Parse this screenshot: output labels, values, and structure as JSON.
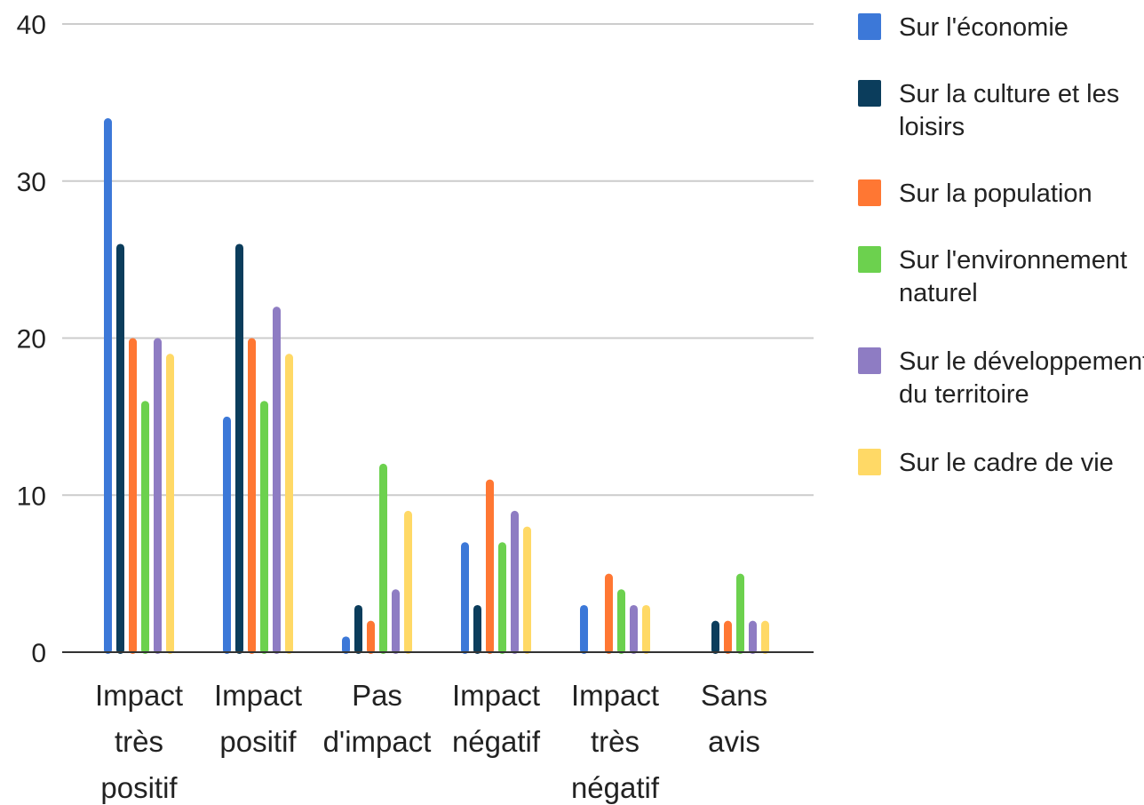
{
  "chart_data": {
    "type": "bar",
    "title": "",
    "xlabel": "",
    "ylabel": "",
    "ylim": [
      0,
      40
    ],
    "yticks": [
      0,
      10,
      20,
      30,
      40
    ],
    "grid": true,
    "legend_position": "right",
    "categories": [
      [
        "Impact",
        "très",
        "positif"
      ],
      [
        "Impact",
        "positif"
      ],
      [
        "Pas",
        "d'impact"
      ],
      [
        "Impact",
        "négatif"
      ],
      [
        "Impact",
        "très",
        "négatif"
      ],
      [
        "Sans",
        "avis"
      ]
    ],
    "series": [
      {
        "name": "Sur l'économie",
        "label_lines": [
          "Sur l'économie"
        ],
        "color": "#3c78d8",
        "values": [
          34,
          15,
          1,
          7,
          3,
          0
        ]
      },
      {
        "name": "Sur la culture et les loisirs",
        "label_lines": [
          "Sur la culture et les",
          "loisirs"
        ],
        "color": "#0b3d5c",
        "values": [
          26,
          26,
          3,
          3,
          0,
          2
        ]
      },
      {
        "name": "Sur la population",
        "label_lines": [
          "Sur la population"
        ],
        "color": "#ff7733",
        "values": [
          20,
          20,
          2,
          11,
          5,
          2
        ]
      },
      {
        "name": "Sur l'environnement naturel",
        "label_lines": [
          "Sur l'environnement",
          "naturel"
        ],
        "color": "#6cd14e",
        "values": [
          16,
          16,
          12,
          7,
          4,
          5
        ]
      },
      {
        "name": "Sur le développement du territoire",
        "label_lines": [
          "Sur le développement",
          "du territoire"
        ],
        "color": "#8e7cc3",
        "values": [
          20,
          22,
          4,
          9,
          3,
          2
        ]
      },
      {
        "name": "Sur le cadre de vie",
        "label_lines": [
          "Sur le cadre de vie"
        ],
        "color": "#ffd966",
        "values": [
          19,
          19,
          9,
          8,
          3,
          2
        ]
      }
    ]
  }
}
